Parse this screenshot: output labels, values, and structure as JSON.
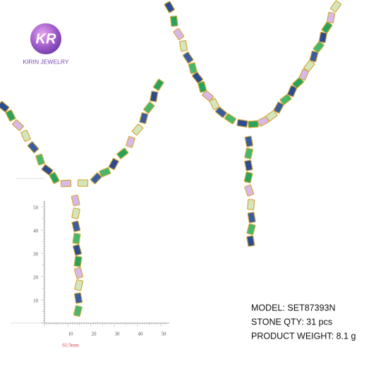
{
  "logo": {
    "mark": "KR",
    "brand": "KIRIN JEWELRY"
  },
  "ruler": {
    "vertical_labels": [
      "50",
      "40",
      "30",
      "20",
      "10"
    ],
    "horizontal_labels": [
      "10",
      "20",
      "30",
      "40",
      "50"
    ],
    "caption": "61/3mm"
  },
  "specs": [
    "MODEL: SET87393N",
    "STONE QTY:  31  pcs",
    "PRODUCT WEIGHT: 8.1 g"
  ]
}
